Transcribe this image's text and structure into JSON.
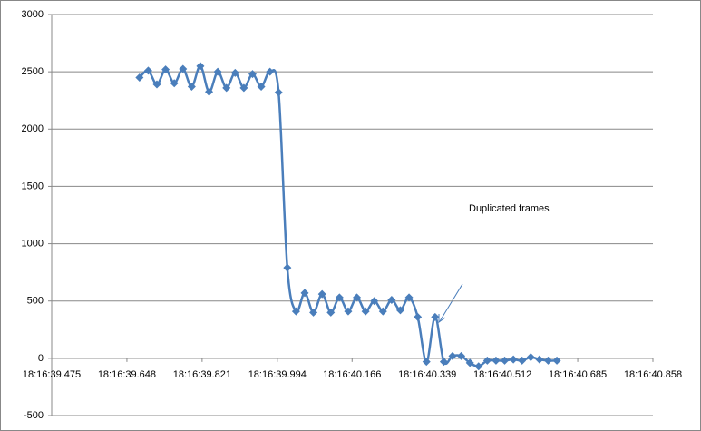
{
  "chart_data": {
    "type": "line",
    "annotation": "Duplicated frames",
    "series": [
      {
        "name": null,
        "color": "#4a7ebb",
        "x": [
          39.677,
          39.697,
          39.717,
          39.737,
          39.757,
          39.777,
          39.797,
          39.817,
          39.837,
          39.857,
          39.877,
          39.897,
          39.917,
          39.937,
          39.957,
          39.977,
          39.997,
          40.017,
          40.037,
          40.057,
          40.077,
          40.097,
          40.117,
          40.137,
          40.157,
          40.177,
          40.197,
          40.217,
          40.237,
          40.257,
          40.277,
          40.297,
          40.317,
          40.337,
          40.357,
          40.377,
          40.397,
          40.417,
          40.437,
          40.457,
          40.477,
          40.497,
          40.517,
          40.537,
          40.557,
          40.577,
          40.597,
          40.617,
          40.637
        ],
        "values": [
          2450,
          2510,
          2390,
          2520,
          2400,
          2525,
          2370,
          2550,
          2325,
          2500,
          2360,
          2490,
          2360,
          2480,
          2370,
          2500,
          2320,
          790,
          410,
          570,
          400,
          560,
          400,
          530,
          410,
          530,
          410,
          500,
          410,
          510,
          420,
          530,
          360,
          -30,
          360,
          -30,
          20,
          20,
          -40,
          -70,
          -20,
          -20,
          -20,
          -10,
          -20,
          10,
          -10,
          -20,
          -20
        ]
      }
    ],
    "xlim": [
      39.475,
      40.858
    ],
    "xticks": [
      {
        "value": 39.475,
        "label": "18:16:39.475"
      },
      {
        "value": 39.648,
        "label": "18:16:39.648"
      },
      {
        "value": 39.821,
        "label": "18:16:39.821"
      },
      {
        "value": 39.994,
        "label": "18:16:39.994"
      },
      {
        "value": 40.166,
        "label": "18:16:40.166"
      },
      {
        "value": 40.339,
        "label": "18:16:40.339"
      },
      {
        "value": 40.512,
        "label": "18:16:40.512"
      },
      {
        "value": 40.685,
        "label": "18:16:40.685"
      },
      {
        "value": 40.858,
        "label": "18:16:40.858"
      }
    ],
    "ylim": [
      -500,
      3000
    ],
    "yticks": [
      -500,
      0,
      500,
      1000,
      1500,
      2000,
      2500,
      3000
    ],
    "grid": true
  }
}
